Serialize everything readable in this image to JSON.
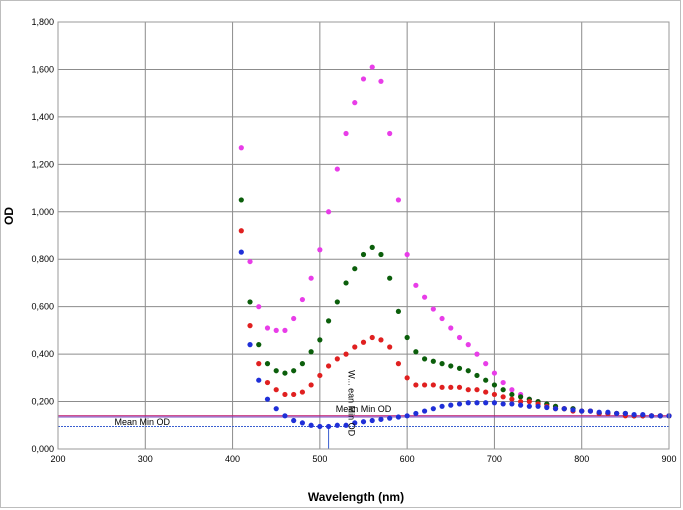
{
  "chart_data": {
    "type": "scatter",
    "title": "",
    "xlabel": "Wavelength (nm)",
    "ylabel": "OD",
    "xlim": [
      200,
      900
    ],
    "ylim": [
      0,
      1.8
    ],
    "x_ticks": [
      200,
      300,
      400,
      500,
      600,
      700,
      800,
      900
    ],
    "y_ticks": [
      0,
      0.2,
      0.4,
      0.6,
      0.8,
      1.0,
      1.2,
      1.4,
      1.6,
      1.8
    ],
    "x_tick_labels": [
      "200",
      "300",
      "400",
      "500",
      "600",
      "700",
      "800",
      "900"
    ],
    "y_tick_labels": [
      "0,000",
      "0,200",
      "0,400",
      "0,600",
      "0,800",
      "1,000",
      "1,200",
      "1,400",
      "1,600",
      "1,800"
    ],
    "grid": true,
    "legend": "none",
    "series": [
      {
        "color": "#e83de8",
        "x": [
          410,
          420,
          430,
          440,
          450,
          460,
          470,
          480,
          490,
          500,
          510,
          520,
          530,
          540,
          550,
          560,
          570,
          580,
          590,
          600,
          610,
          620,
          630,
          640,
          650,
          660,
          670,
          680,
          690,
          700,
          710,
          720,
          730,
          740,
          750,
          760,
          770,
          780,
          790,
          800,
          810,
          820,
          830,
          840,
          850,
          860,
          870,
          880,
          890,
          900
        ],
        "y": [
          1.27,
          0.79,
          0.6,
          0.51,
          0.5,
          0.5,
          0.55,
          0.63,
          0.72,
          0.84,
          1.0,
          1.18,
          1.33,
          1.46,
          1.56,
          1.61,
          1.55,
          1.33,
          1.05,
          0.82,
          0.69,
          0.64,
          0.59,
          0.55,
          0.51,
          0.47,
          0.44,
          0.4,
          0.36,
          0.32,
          0.28,
          0.25,
          0.23,
          0.21,
          0.2,
          0.19,
          0.18,
          0.17,
          0.17,
          0.16,
          0.16,
          0.15,
          0.15,
          0.15,
          0.15,
          0.14,
          0.14,
          0.14,
          0.14,
          0.14
        ]
      },
      {
        "color": "#0b5e0b",
        "x": [
          410,
          420,
          430,
          440,
          450,
          460,
          470,
          480,
          490,
          500,
          510,
          520,
          530,
          540,
          550,
          560,
          570,
          580,
          590,
          600,
          610,
          620,
          630,
          640,
          650,
          660,
          670,
          680,
          690,
          700,
          710,
          720,
          730,
          740,
          750,
          760,
          770,
          780,
          790,
          800,
          810,
          820,
          830,
          840,
          850,
          860,
          870,
          880,
          890,
          900
        ],
        "y": [
          1.05,
          0.62,
          0.44,
          0.36,
          0.33,
          0.32,
          0.33,
          0.36,
          0.41,
          0.46,
          0.54,
          0.62,
          0.7,
          0.76,
          0.82,
          0.85,
          0.82,
          0.72,
          0.58,
          0.47,
          0.41,
          0.38,
          0.37,
          0.36,
          0.35,
          0.34,
          0.33,
          0.31,
          0.29,
          0.27,
          0.25,
          0.23,
          0.22,
          0.21,
          0.2,
          0.19,
          0.18,
          0.17,
          0.17,
          0.16,
          0.16,
          0.15,
          0.15,
          0.15,
          0.15,
          0.14,
          0.14,
          0.14,
          0.14,
          0.14
        ]
      },
      {
        "color": "#e02020",
        "x": [
          410,
          420,
          430,
          440,
          450,
          460,
          470,
          480,
          490,
          500,
          510,
          520,
          530,
          540,
          550,
          560,
          570,
          580,
          590,
          600,
          610,
          620,
          630,
          640,
          650,
          660,
          670,
          680,
          690,
          700,
          710,
          720,
          730,
          740,
          750,
          760,
          770,
          780,
          790,
          800,
          810,
          820,
          830,
          840,
          850,
          860,
          870,
          880,
          890,
          900
        ],
        "y": [
          0.92,
          0.52,
          0.36,
          0.28,
          0.25,
          0.23,
          0.23,
          0.24,
          0.27,
          0.31,
          0.35,
          0.38,
          0.4,
          0.43,
          0.45,
          0.47,
          0.46,
          0.43,
          0.36,
          0.3,
          0.27,
          0.27,
          0.27,
          0.26,
          0.26,
          0.26,
          0.25,
          0.25,
          0.24,
          0.23,
          0.22,
          0.21,
          0.2,
          0.2,
          0.19,
          0.18,
          0.17,
          0.17,
          0.16,
          0.16,
          0.16,
          0.15,
          0.15,
          0.15,
          0.14,
          0.14,
          0.14,
          0.14,
          0.14,
          0.14
        ]
      },
      {
        "color": "#1f2fd8",
        "x": [
          410,
          420,
          430,
          440,
          450,
          460,
          470,
          480,
          490,
          500,
          510,
          520,
          530,
          540,
          550,
          560,
          570,
          580,
          590,
          600,
          610,
          620,
          630,
          640,
          650,
          660,
          670,
          680,
          690,
          700,
          710,
          720,
          730,
          740,
          750,
          760,
          770,
          780,
          790,
          800,
          810,
          820,
          830,
          840,
          850,
          860,
          870,
          880,
          890,
          900
        ],
        "y": [
          0.83,
          0.44,
          0.29,
          0.21,
          0.17,
          0.14,
          0.12,
          0.11,
          0.1,
          0.095,
          0.095,
          0.1,
          0.1,
          0.11,
          0.115,
          0.12,
          0.125,
          0.13,
          0.135,
          0.14,
          0.15,
          0.16,
          0.17,
          0.18,
          0.185,
          0.19,
          0.195,
          0.195,
          0.195,
          0.195,
          0.19,
          0.19,
          0.185,
          0.18,
          0.18,
          0.175,
          0.17,
          0.17,
          0.165,
          0.16,
          0.16,
          0.155,
          0.155,
          0.15,
          0.15,
          0.145,
          0.145,
          0.14,
          0.14,
          0.14
        ]
      }
    ],
    "reference_lines": [
      {
        "orientation": "horizontal",
        "y": 0.14,
        "color": "#c0196d"
      },
      {
        "orientation": "horizontal",
        "y": 0.135,
        "color": "#7a50c8"
      },
      {
        "orientation": "horizontal",
        "y": 0.095,
        "color": "#3a5fd0",
        "dashed": true
      },
      {
        "orientation": "vertical",
        "x": 510,
        "y_top": 0.095,
        "color": "#3a5fd0"
      }
    ],
    "annotations": {
      "mean_min_od_upper": {
        "text": "Mean Min OD",
        "x": 550,
        "y": 0.155
      },
      "mean_min_od_lower": {
        "text": "Mean Min OD",
        "x": 300,
        "y": 0.11
      },
      "wavelength_mean_min_od": {
        "text": "W... ean Min OD",
        "x": 550,
        "y": 0.24,
        "rotated": true
      }
    }
  }
}
